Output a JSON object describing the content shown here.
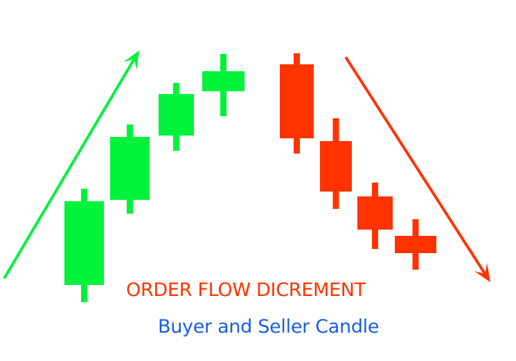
{
  "colors": {
    "buyer": "#00f23a",
    "seller": "#ff3300",
    "title_text": "#ff3300",
    "subtitle_text": "#1a5ce6",
    "background": "#ffffff"
  },
  "text": {
    "title": "ORDER FLOW DICREMENT",
    "subtitle": "Buyer and Seller Candle"
  },
  "candles": [
    {
      "id": "buyer-candle-1",
      "side": "buyer"
    },
    {
      "id": "buyer-candle-2",
      "side": "buyer"
    },
    {
      "id": "buyer-candle-3",
      "side": "buyer"
    },
    {
      "id": "buyer-candle-4",
      "side": "buyer"
    },
    {
      "id": "seller-candle-1",
      "side": "seller"
    },
    {
      "id": "seller-candle-2",
      "side": "seller"
    },
    {
      "id": "seller-candle-3",
      "side": "seller"
    },
    {
      "id": "seller-candle-4",
      "side": "seller"
    }
  ],
  "arrows": [
    {
      "id": "up-trend-arrow",
      "side": "buyer",
      "direction": "up-right"
    },
    {
      "id": "down-trend-arrow",
      "side": "seller",
      "direction": "down-right"
    }
  ]
}
